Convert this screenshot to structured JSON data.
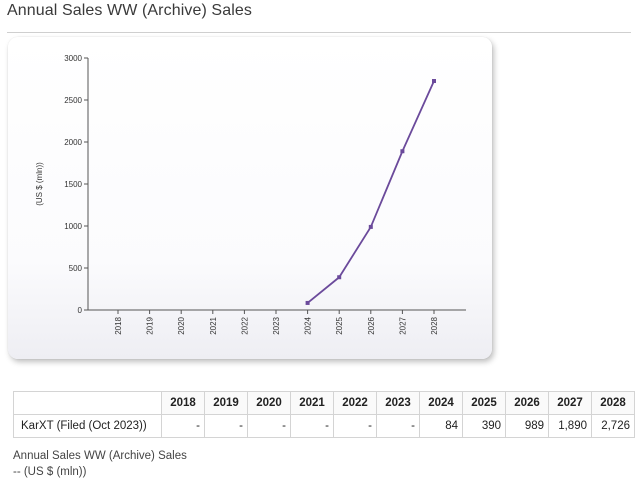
{
  "page": {
    "title": "Annual Sales WW (Archive) Sales"
  },
  "chart_data": {
    "type": "line",
    "title": "",
    "xlabel": "",
    "ylabel": "(US $ (mln))",
    "ylim": [
      0,
      3000
    ],
    "yticks": [
      0,
      500,
      1000,
      1500,
      2000,
      2500,
      3000
    ],
    "yticks_labels": [
      "0",
      "500",
      "1000",
      "1500",
      "2000",
      "2500",
      "3000"
    ],
    "categories": [
      "2018",
      "2019",
      "2020",
      "2021",
      "2022",
      "2023",
      "2024",
      "2025",
      "2026",
      "2027",
      "2028"
    ],
    "series": [
      {
        "name": "KarXT (Filed (Oct 2023))",
        "color": "#6b4a9b",
        "values": [
          null,
          null,
          null,
          null,
          null,
          null,
          84,
          390,
          989,
          1890,
          2726
        ]
      }
    ],
    "grid": false
  },
  "table": {
    "years": [
      "2018",
      "2019",
      "2020",
      "2021",
      "2022",
      "2023",
      "2024",
      "2025",
      "2026",
      "2027",
      "2028"
    ],
    "rows": [
      {
        "name": "KarXT (Filed (Oct 2023))",
        "cells": [
          "-",
          "-",
          "-",
          "-",
          "-",
          "-",
          "84",
          "390",
          "989",
          "1,890",
          "2,726"
        ]
      }
    ]
  },
  "footnote": {
    "line1": "Annual Sales WW (Archive) Sales",
    "line2": "-- (US $ (mln))"
  }
}
